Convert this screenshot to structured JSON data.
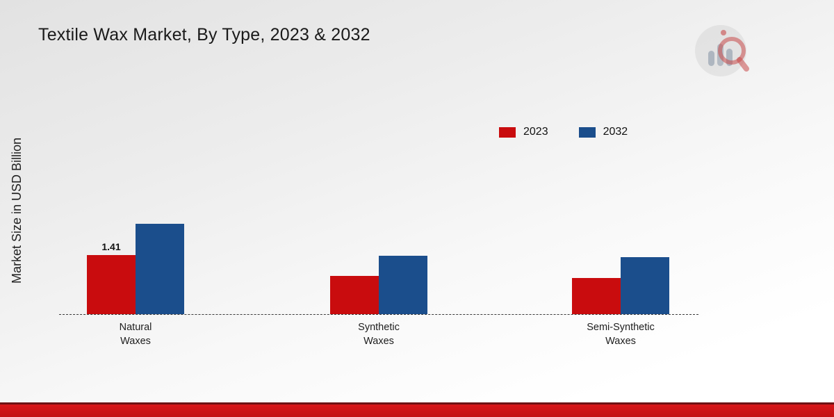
{
  "title": "Textile Wax Market, By Type, 2023 & 2032",
  "ylabel": "Market Size in USD Billion",
  "brand": {
    "logo_name": "market-research-chart-logo"
  },
  "accent_colors": {
    "series_2023": "#c90c0e",
    "series_2032": "#1b4e8c",
    "footer_red": "#d81619"
  },
  "chart_data": {
    "type": "bar",
    "title": "Textile Wax Market, By Type, 2023 & 2032",
    "ylabel": "Market Size in USD Billion",
    "xlabel": "",
    "categories": [
      "Natural Waxes",
      "Synthetic Waxes",
      "Semi-Synthetic Waxes"
    ],
    "series": [
      {
        "name": "2023",
        "color": "#c90c0e",
        "values": [
          1.41,
          0.92,
          0.87
        ]
      },
      {
        "name": "2032",
        "color": "#1b4e8c",
        "values": [
          2.16,
          1.4,
          1.37
        ]
      }
    ],
    "annotations": [
      {
        "category": "Natural Waxes",
        "series": "2023",
        "text": "1.41"
      }
    ],
    "ylim": [
      0,
      2.5
    ],
    "grid": false,
    "baseline_style": "dashed",
    "legend_position": "top-right"
  }
}
